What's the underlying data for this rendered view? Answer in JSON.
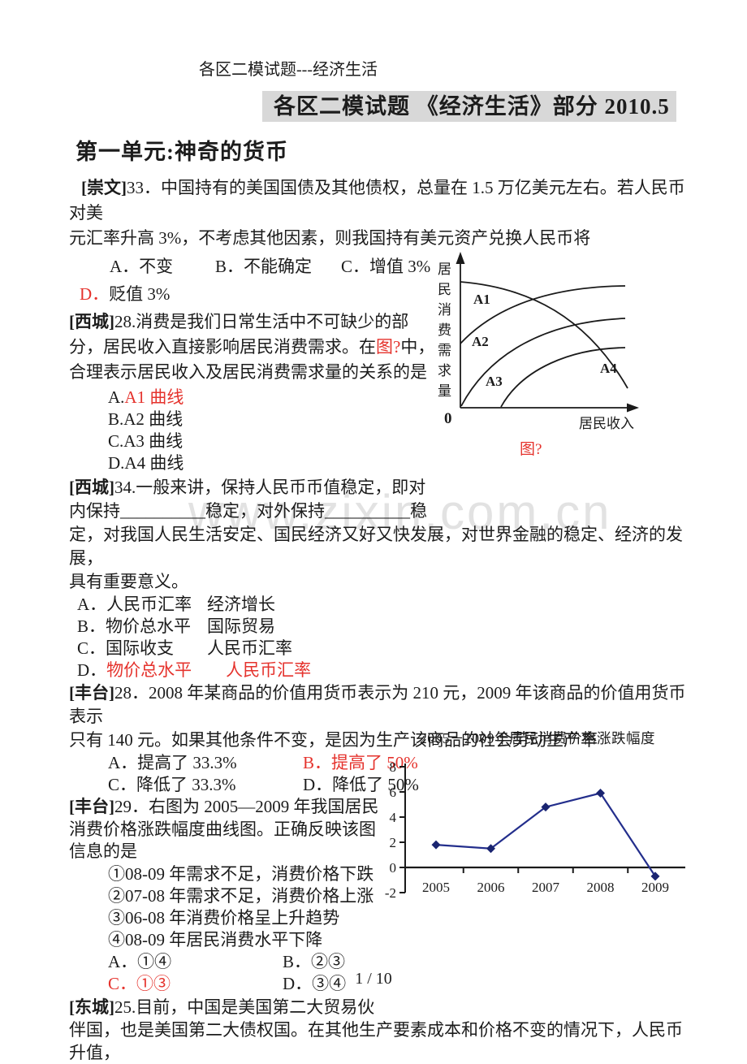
{
  "doc": {
    "header": "各区二模试题---经济生活",
    "title": "各区二模试题 《经济生活》部分 2010.5",
    "section": "第一单元:神奇的货币",
    "footer": "1 / 10",
    "watermark": "www.zixin.com.cn"
  },
  "colors": {
    "accent_red": "#e5332d",
    "title_highlight_bg": "#d8d8d8",
    "chart_line": "#232e8c",
    "watermark_gray": "#e2e2e2"
  },
  "q33": {
    "tag": "[崇文]",
    "num": "33．",
    "stem_l1": "中国持有的美国国债及其他债权，总量在 1.5 万亿美元左右。若人民币对美",
    "stem_l2": "元汇率升高 3%，不考虑其他因素，则我国持有美元资产兑换人民币将",
    "opt_a": "A．不变",
    "opt_b": "B．不能确定",
    "opt_c": "C．增值 3%",
    "opt_d_label": "D．",
    "opt_d_text": "贬值 3%"
  },
  "q28xc": {
    "tag": "[西城]",
    "num": "28.",
    "stem_l1": "消费是我们日常生活中不可缺少的部",
    "stem_l2a": "分，居民收入直接影响居民消费需求。在",
    "stem_l2_red": "图?",
    "stem_l2b": "中，",
    "stem_l3": "合理表示居民收入及居民消费需求量的关系的是",
    "opt_a_label": "A.",
    "opt_a_red": "A1 曲线",
    "opt_b": "B.A2 曲线",
    "opt_c": "C.A3 曲线",
    "opt_d": "D.A4 曲线"
  },
  "curve_chart": {
    "y_axis_label": "居民消费需求量",
    "x_axis_label": "居民收入",
    "origin_label": "0",
    "curve_labels": [
      "A1",
      "A2",
      "A3",
      "A4"
    ],
    "caption": "图?"
  },
  "q34xc": {
    "tag": "[西城]",
    "num": "34.",
    "stem_l1": "一般来讲，保持人民币币值稳定，即对",
    "stem_l2": "内保持__________稳定，对外保持__________稳",
    "stem_l3": "定，对我国人民生活安定、国民经济又好又快发展，对世界金融的稳定、经济的发展，",
    "stem_l4": "具有重要意义。",
    "opt_a_1": "A．人民币汇率",
    "opt_a_2": "经济增长",
    "opt_b_1": "B．物价总水平",
    "opt_b_2": "国际贸易",
    "opt_c_1": "C．国际收支",
    "opt_c_2": "人民币汇率",
    "opt_d_label": "D．",
    "opt_d_1": "物价总水平",
    "opt_d_2": "人民币汇率"
  },
  "q28ft": {
    "tag": "[丰台]",
    "num": "28．",
    "stem_l1": "2008 年某商品的价值用货币表示为 210 元，2009 年该商品的价值用货币表示",
    "stem_l2": "只有 140 元。如果其他条件不变，是因为生产该商品的社会劳动生产率",
    "opt_a": "A．提高了 33.3%",
    "opt_b_red": "B．提高了 50%",
    "opt_c": "C．降低了 33.3%",
    "opt_d": "D．降低了 50%"
  },
  "q29ft": {
    "tag": "[丰台]",
    "num": "29．",
    "stem_l1": "右图为 2005—2009 年我国居民",
    "stem_l2": "消费价格涨跌幅度曲线图。正确反映该图",
    "stem_l3": "信息的是",
    "item_1": "①08-09 年需求不足，消费价格下跌",
    "item_2": "②07-08 年需求不足，消费价格上涨",
    "item_3": "③06-08 年消费价格呈上升趋势",
    "item_4": "④08-09 年居民消费水平下降",
    "opt_a": "A．①④",
    "opt_b": "B．②③",
    "opt_c_red": "C．①③",
    "opt_d": "D．③④"
  },
  "chart_data": {
    "type": "line",
    "title": "2005－2009年居民消费价格涨跌幅度",
    "x": [
      2005,
      2006,
      2007,
      2008,
      2009
    ],
    "values": [
      1.8,
      1.5,
      4.8,
      5.9,
      -0.7
    ],
    "ylim": [
      -2,
      8
    ],
    "yticks": [
      8,
      6,
      4,
      2,
      0,
      -2
    ],
    "xlabel": "",
    "ylabel": "",
    "grid": false,
    "legend": "none",
    "line_color": "#232e8c",
    "marker": "diamond"
  },
  "q25dc": {
    "tag": "[东城]",
    "num": "25.",
    "stem_l1": "目前，中国是美国第二大贸易伙",
    "stem_l2": "伴国，也是美国第二大债权国。在其他生产要素成本和价格不变的情况下，人民币升值，"
  }
}
